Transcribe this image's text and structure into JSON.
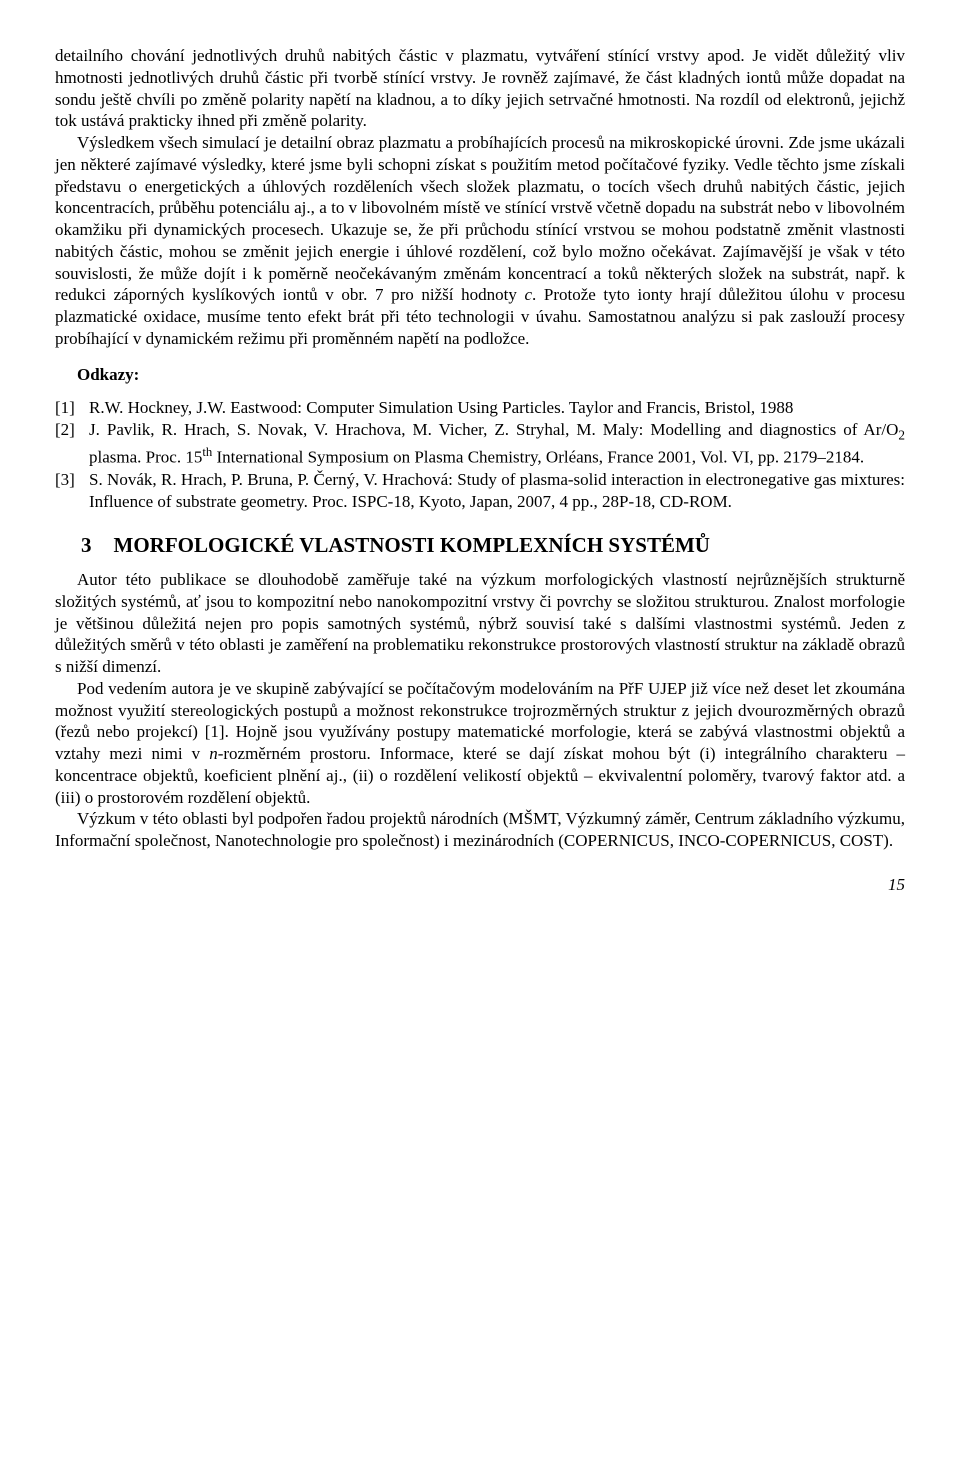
{
  "body": {
    "para1": "detailního chování jednotlivých druhů nabitých částic v plazmatu, vytváření stínící vrstvy apod. Je vidět důležitý vliv hmotnosti jednotlivých druhů částic při tvorbě stínící vrstvy. Je rovněž zajímavé, že část kladných iontů může dopadat na sondu ještě chvíli po změně polarity napětí na kladnou, a to díky jejich setrvačné hmotnosti. Na rozdíl od elektronů, jejichž tok ustává prakticky ihned při změně polarity.",
    "para2_a": "Výsledkem všech simulací je detailní obraz plazmatu a probíhajících procesů na mikroskopické úrovni. Zde jsme ukázali jen některé zajímavé výsledky, které jsme byli schopni získat s použitím metod počítačové fyziky. Vedle těchto jsme získali představu o energetických a úhlových rozděleních všech složek plazmatu, o tocích všech druhů nabitých částic, jejich koncentracích, průběhu potenciálu aj., a to v libovolném místě ve stínící vrstvě včetně dopadu na substrát nebo v libovolném okamžiku při dynamických procesech. Ukazuje se, že při průchodu stínící vrstvou se mohou podstatně změnit vlastnosti nabitých částic, mohou se změnit jejich energie i úhlové rozdělení, což bylo možno očekávat. Zajímavější je však v této souvislosti, že může dojít i k poměrně neočekávaným změnám koncentrací a toků některých složek na substrát, např. k redukci záporných kyslíkových iontů v obr. 7 pro nižší hodnoty ",
    "para2_c": "c",
    "para2_b": ". Protože tyto ionty hrají důležitou úlohu v procesu plazmatické oxidace, musíme tento efekt brát při této technologii v úvahu. Samostatnou analýzu si pak zaslouží procesy probíhající v dynamickém režimu při proměnném napětí na podložce."
  },
  "refsHeading": "Odkazy:",
  "refs": [
    {
      "num": "[1]",
      "text_a": "R.W. Hockney, J.W. Eastwood: Computer Simulation Using Particles. Taylor and Francis, Bristol, 1988"
    },
    {
      "num": "[2]",
      "text_a": "J. Pavlik, R. Hrach, S. Novak, V. Hrachova, M. Vicher, Z. Stryhal, M. Maly: Modelling and diagnostics of Ar/O",
      "sub": "2",
      "text_b": " plasma. Proc. 15",
      "sup": "th",
      "text_c": " International Symposium on Plasma Chemistry, Orléans, France 2001, Vol. VI, pp. 2179–2184."
    },
    {
      "num": "[3]",
      "text_a": "S. Novák, R. Hrach, P. Bruna, P. Černý, V. Hrachová: Study of plasma-solid interaction in electronegative gas mixtures: Influence of substrate geometry. Proc. ISPC-18, Kyoto, Japan, 2007, 4 pp., 28P-18, CD-ROM."
    }
  ],
  "section": {
    "num": "3",
    "title": "MORFOLOGICKÉ VLASTNOSTI KOMPLEXNÍCH SYSTÉMŮ"
  },
  "sec3": {
    "p1": "Autor této publikace se dlouhodobě zaměřuje také na výzkum morfologických vlastností nejrůznějších strukturně složitých systémů, ať jsou to kompozitní nebo nanokompozitní vrstvy či povrchy se složitou strukturou. Znalost morfologie je většinou důležitá nejen pro popis samotných systémů, nýbrž souvisí také s dalšími vlastnostmi systémů. Jeden z důležitých směrů v této oblasti je zaměření na problematiku rekonstrukce prostorových vlastností struktur na základě obrazů s nižší dimenzí.",
    "p2_a": "Pod vedením autora je ve  skupině zabývající se počítačovým modelováním na PřF UJEP již více než deset let zkoumána možnost využití stereologických postupů a možnost rekonstrukce trojrozměrných struktur z jejich dvourozměrných obrazů (řezů nebo projekcí) [1]. Hojně jsou využívány postupy matematické morfologie, která se zabývá vlastnostmi objektů a vztahy mezi nimi v ",
    "p2_n": "n",
    "p2_b": "-rozměrném prostoru. Informace, které se dají získat mohou být (i) integrálního charakteru – koncentrace objektů, koeficient plnění aj., (ii) o rozdělení velikostí objektů – ekvivalentní poloměry, tvarový faktor atd. a (iii) o prostorovém rozdělení objektů.",
    "p3": "Výzkum v této oblasti byl podpořen řadou projektů národních (MŠMT, Výzkumný záměr, Centrum základního výzkumu, Informační společnost, Nanotechnologie pro společnost) i mezinárodních (COPERNICUS, INCO-COPERNICUS, COST)."
  },
  "pageNum": "15"
}
